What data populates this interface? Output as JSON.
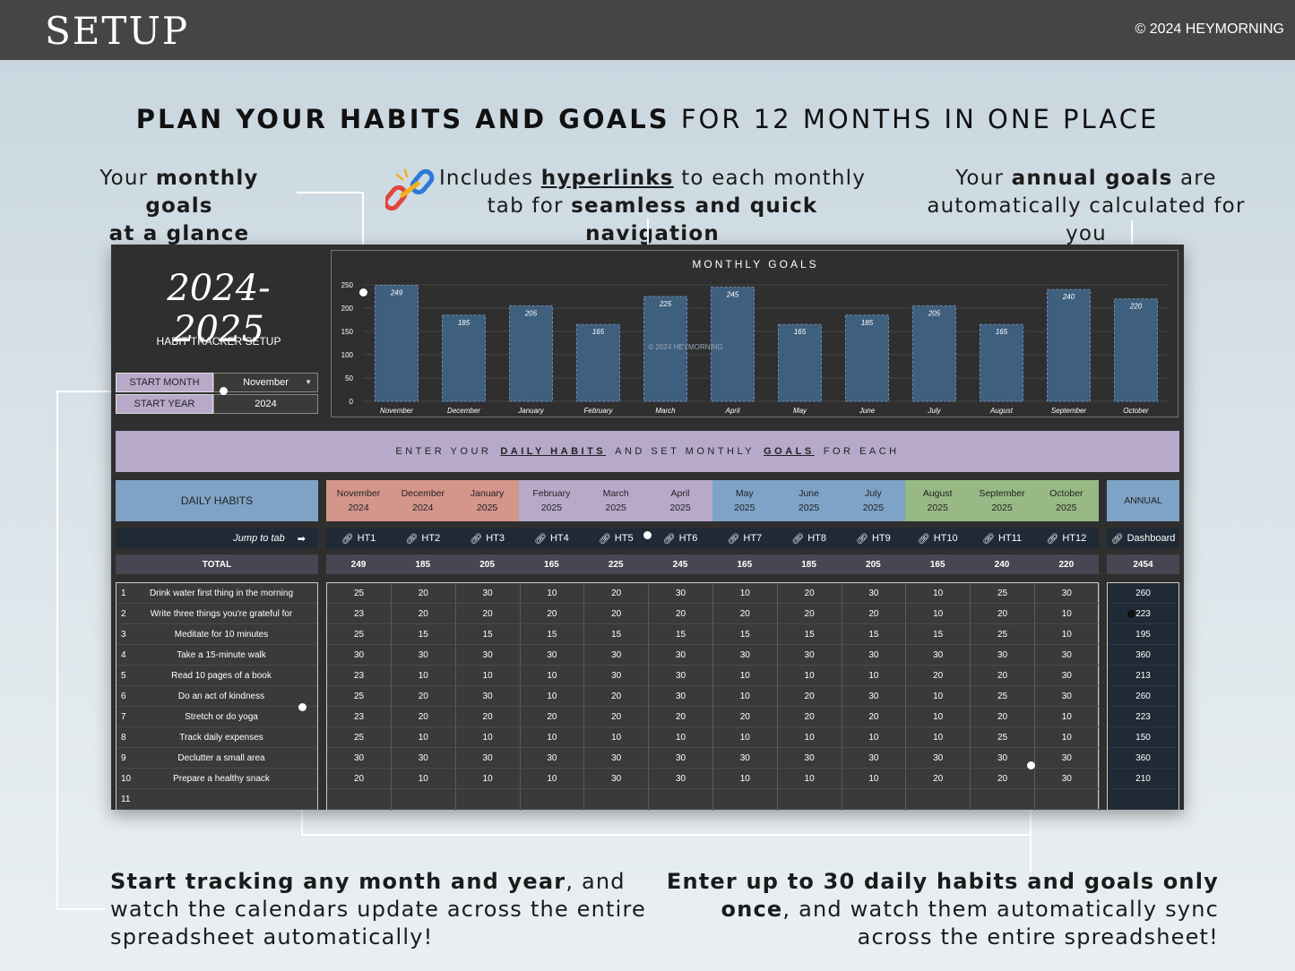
{
  "header": {
    "title": "SETUP",
    "copyright": "© 2024 HEYMORNING"
  },
  "headline": {
    "bold": "PLAN YOUR HABITS AND GOALS",
    "rest": "FOR 12 MONTHS IN ONE PLACE"
  },
  "callouts": {
    "monthly": {
      "pre": "Your ",
      "bold1": "monthly goals",
      "bold2": "at a glance"
    },
    "hyperlinks": {
      "pre": "Includes ",
      "link": "hyperlinks",
      "mid": " to each monthly",
      "line2_pre": "tab for ",
      "bold": "seamless and quick navigation"
    },
    "annual": {
      "pre": "Your ",
      "bold": "annual goals",
      "post": " are",
      "line2": "automatically calculated for you"
    },
    "start": {
      "bold": "Start tracking any month and year",
      "rest": ", and watch the calendars update across the entire spreadsheet automatically!"
    },
    "enter": {
      "bold": "Enter up to 30 daily habits and goals only once",
      "rest": ", and watch them automatically sync across the entire spreadsheet!"
    }
  },
  "sheet": {
    "year_title": "2024-2025",
    "tracker_label": "HABIT TRACKER SETUP",
    "start_month_label": "START MONTH",
    "start_month_value": "November",
    "start_year_label": "START YEAR",
    "start_year_value": "2024",
    "banner": {
      "p1": "ENTER YOUR",
      "b1": "DAILY HABITS",
      "p2": "AND SET MONTHLY",
      "b2": "GOALS",
      "p3": "FOR EACH"
    },
    "daily_habits_header": "DAILY HABITS",
    "annual_header": "ANNUAL",
    "jump_label": "Jump to tab",
    "jump_arrow": "➡",
    "dashboard_link": "Dashboard",
    "total_label": "TOTAL",
    "annual_total": "2454",
    "months": [
      {
        "name": "November",
        "year": "2024",
        "link": "HT1",
        "total": "249",
        "color": "#d4958b"
      },
      {
        "name": "December",
        "year": "2024",
        "link": "HT2",
        "total": "185",
        "color": "#d4958b"
      },
      {
        "name": "January",
        "year": "2025",
        "link": "HT3",
        "total": "205",
        "color": "#d4958b"
      },
      {
        "name": "February",
        "year": "2025",
        "link": "HT4",
        "total": "165",
        "color": "#b9a9c9"
      },
      {
        "name": "March",
        "year": "2025",
        "link": "HT5",
        "total": "225",
        "color": "#b9a9c9"
      },
      {
        "name": "April",
        "year": "2025",
        "link": "HT6",
        "total": "245",
        "color": "#b9a9c9"
      },
      {
        "name": "May",
        "year": "2025",
        "link": "HT7",
        "total": "165",
        "color": "#7ea3c6"
      },
      {
        "name": "June",
        "year": "2025",
        "link": "HT8",
        "total": "185",
        "color": "#7ea3c6"
      },
      {
        "name": "July",
        "year": "2025",
        "link": "HT9",
        "total": "205",
        "color": "#7ea3c6"
      },
      {
        "name": "August",
        "year": "2025",
        "link": "HT10",
        "total": "165",
        "color": "#98b985"
      },
      {
        "name": "September",
        "year": "2025",
        "link": "HT11",
        "total": "240",
        "color": "#98b985"
      },
      {
        "name": "October",
        "year": "2025",
        "link": "HT12",
        "total": "220",
        "color": "#98b985"
      }
    ],
    "habits": [
      {
        "num": "1",
        "name": "Drink water first thing in the morning",
        "goals": [
          "25",
          "20",
          "30",
          "10",
          "20",
          "30",
          "10",
          "20",
          "30",
          "10",
          "25",
          "30"
        ],
        "annual": "260"
      },
      {
        "num": "2",
        "name": "Write three things you're grateful for",
        "goals": [
          "23",
          "20",
          "20",
          "20",
          "20",
          "20",
          "20",
          "20",
          "20",
          "10",
          "20",
          "10"
        ],
        "annual": "223"
      },
      {
        "num": "3",
        "name": "Meditate for 10 minutes",
        "goals": [
          "25",
          "15",
          "15",
          "15",
          "15",
          "15",
          "15",
          "15",
          "15",
          "15",
          "25",
          "10"
        ],
        "annual": "195"
      },
      {
        "num": "4",
        "name": "Take a 15-minute walk",
        "goals": [
          "30",
          "30",
          "30",
          "30",
          "30",
          "30",
          "30",
          "30",
          "30",
          "30",
          "30",
          "30"
        ],
        "annual": "360"
      },
      {
        "num": "5",
        "name": "Read 10 pages of a book",
        "goals": [
          "23",
          "10",
          "10",
          "10",
          "30",
          "30",
          "10",
          "10",
          "10",
          "20",
          "20",
          "30"
        ],
        "annual": "213"
      },
      {
        "num": "6",
        "name": "Do an act of kindness",
        "goals": [
          "25",
          "20",
          "30",
          "10",
          "20",
          "30",
          "10",
          "20",
          "30",
          "10",
          "25",
          "30"
        ],
        "annual": "260"
      },
      {
        "num": "7",
        "name": "Stretch or do yoga",
        "goals": [
          "23",
          "20",
          "20",
          "20",
          "20",
          "20",
          "20",
          "20",
          "20",
          "10",
          "20",
          "10"
        ],
        "annual": "223"
      },
      {
        "num": "8",
        "name": "Track daily expenses",
        "goals": [
          "25",
          "10",
          "10",
          "10",
          "10",
          "10",
          "10",
          "10",
          "10",
          "10",
          "25",
          "10"
        ],
        "annual": "150"
      },
      {
        "num": "9",
        "name": "Declutter a small area",
        "goals": [
          "30",
          "30",
          "30",
          "30",
          "30",
          "30",
          "30",
          "30",
          "30",
          "30",
          "30",
          "30"
        ],
        "annual": "360"
      },
      {
        "num": "10",
        "name": "Prepare a healthy snack",
        "goals": [
          "20",
          "10",
          "10",
          "10",
          "30",
          "30",
          "10",
          "10",
          "10",
          "20",
          "20",
          "30"
        ],
        "annual": "210"
      },
      {
        "num": "11",
        "name": "",
        "goals": [
          "",
          "",
          "",
          "",
          "",
          "",
          "",
          "",
          "",
          "",
          "",
          ""
        ],
        "annual": ""
      }
    ]
  },
  "chart_data": {
    "type": "bar",
    "title": "MONTHLY GOALS",
    "watermark": "© 2024 HEYMORNING",
    "categories": [
      "November",
      "December",
      "January",
      "February",
      "March",
      "April",
      "May",
      "June",
      "July",
      "August",
      "September",
      "October"
    ],
    "values": [
      249,
      185,
      205,
      165,
      225,
      245,
      165,
      185,
      205,
      165,
      240,
      220
    ],
    "yticks": [
      0,
      50,
      100,
      150,
      200,
      250
    ],
    "ylim": [
      0,
      250
    ],
    "bar_color": "#3f5f7f",
    "grid": true
  }
}
